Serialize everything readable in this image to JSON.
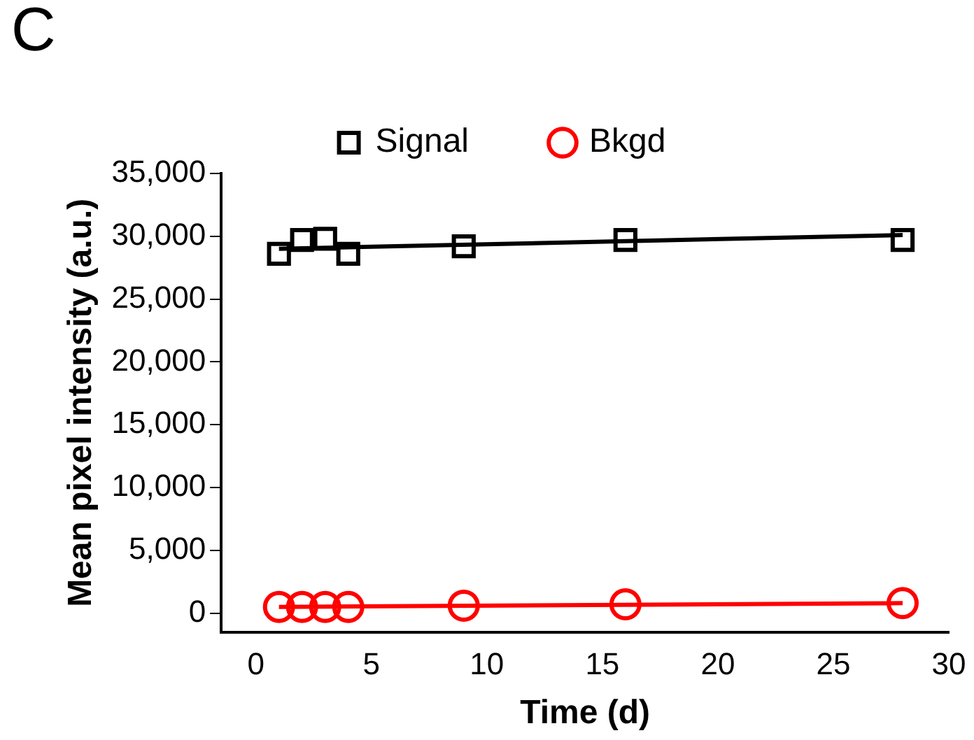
{
  "chart_data": {
    "type": "scatter",
    "title": "C",
    "xlabel": "Time (d)",
    "ylabel": "Mean pixel intensity (a.u.)",
    "xlim": [
      -1.5,
      30
    ],
    "xticks": [
      0,
      5,
      10,
      15,
      20,
      25,
      30
    ],
    "ylim": [
      -1500,
      35000
    ],
    "yticks": [
      {
        "value": 0,
        "label": "0"
      },
      {
        "value": 5000,
        "label": "5,000"
      },
      {
        "value": 10000,
        "label": "10,000"
      },
      {
        "value": 15000,
        "label": "15,000"
      },
      {
        "value": 20000,
        "label": "20,000"
      },
      {
        "value": 25000,
        "label": "25,000"
      },
      {
        "value": 30000,
        "label": "30,000"
      },
      {
        "value": 35000,
        "label": "35,000"
      }
    ],
    "grid": false,
    "legend": "top",
    "series": [
      {
        "name": "Signal",
        "color": "#000000",
        "marker": "square",
        "x": [
          1,
          2,
          3,
          4,
          9,
          16,
          28
        ],
        "values": [
          28600,
          29700,
          29800,
          28600,
          29200,
          29700,
          29700
        ]
      },
      {
        "name": "Bkgd",
        "color": "#ff0000",
        "marker": "circle",
        "x": [
          1,
          2,
          3,
          4,
          9,
          16,
          28
        ],
        "values": [
          500,
          500,
          500,
          500,
          600,
          700,
          800
        ]
      },
      {
        "type": "line",
        "color": "#000000",
        "marker": "none",
        "x": [
          1,
          28
        ],
        "values": [
          29000,
          30100
        ]
      },
      {
        "type": "line",
        "color": "#ff0000",
        "marker": "none",
        "x": [
          1,
          28
        ],
        "values": [
          500,
          800
        ]
      }
    ]
  }
}
